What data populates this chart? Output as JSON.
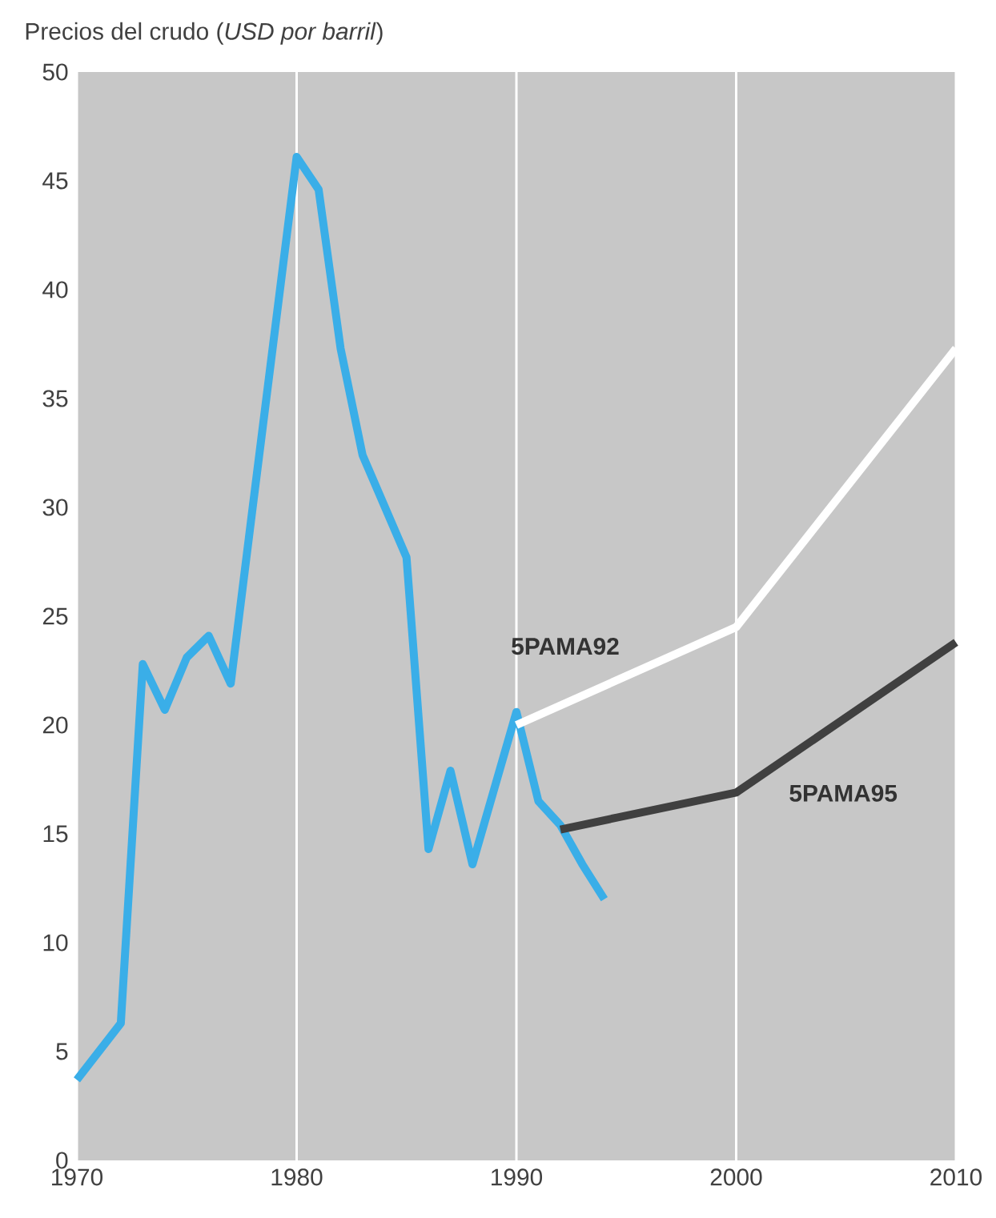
{
  "chart_data": {
    "type": "line",
    "title": "Precios del crudo (*USD por barril*)",
    "xlim": [
      1970,
      2010
    ],
    "xticks": [
      1970,
      1980,
      1990,
      2000,
      2010
    ],
    "ylim": [
      0,
      50
    ],
    "yticks": [
      0,
      5,
      10,
      15,
      20,
      25,
      30,
      35,
      40,
      45,
      50
    ],
    "grid": "x",
    "marker": "none",
    "line_style": "solid",
    "series": [
      {
        "color": "#3aaee8",
        "x": [
          1970,
          1972,
          1973,
          1974,
          1975,
          1976,
          1977,
          1978,
          1980,
          1981,
          1982,
          1983,
          1985,
          1986,
          1987,
          1988,
          1990,
          1991,
          1992,
          1993,
          1994
        ],
        "values": [
          3.7,
          6.3,
          22.8,
          20.7,
          23.1,
          24.1,
          21.9,
          30,
          46.1,
          44.6,
          37.3,
          32.4,
          27.7,
          14.3,
          17.9,
          13.6,
          20.6,
          16.5,
          15.4,
          13.6,
          12
        ]
      },
      {
        "name": "5PAMA92",
        "color": "#ffffff",
        "x": [
          1990,
          2000,
          2010
        ],
        "values": [
          20,
          24.5,
          37.3
        ]
      },
      {
        "name": "5PAMA95",
        "color": "#404040",
        "x": [
          1992,
          2000,
          2010
        ],
        "values": [
          15.2,
          16.9,
          23.8
        ]
      }
    ]
  }
}
